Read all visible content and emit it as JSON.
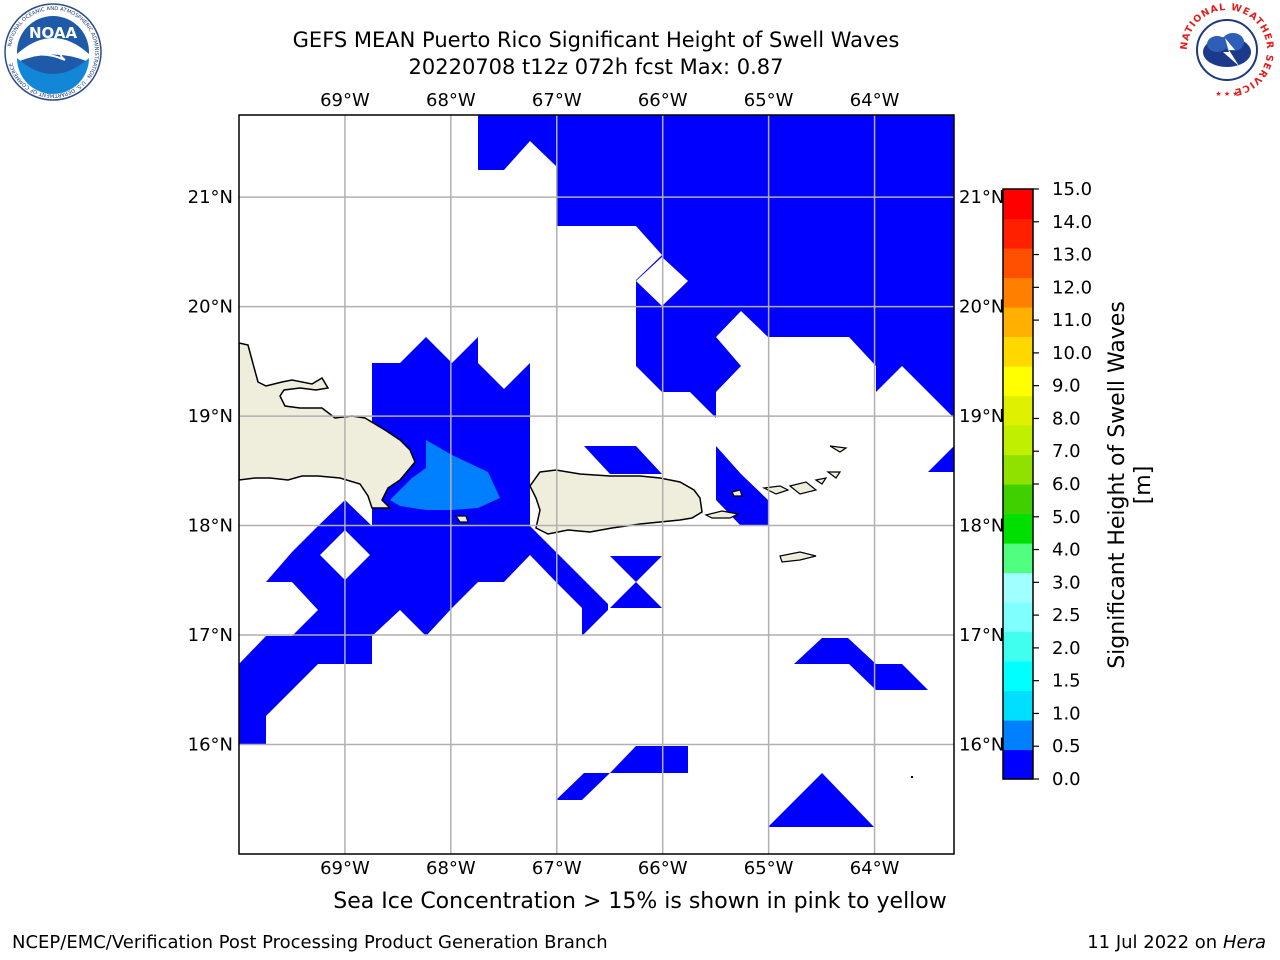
{
  "header": {
    "title_line1": "GEFS MEAN Puerto Rico Significant Height of Swell Waves",
    "title_line2": "20220708 t12z 072h fcst   Max: 0.87"
  },
  "logos": {
    "noaa_text": "NOAA",
    "noaa_ring_text": "NATIONAL OCEANIC AND ATMOSPHERIC ADMINISTRATION · U.S. DEPARTMENT OF COMMERCE",
    "nws_ring_text": "NATIONAL WEATHER SERVICE"
  },
  "map": {
    "lon_range": [
      -70.0,
      -63.25
    ],
    "lat_range": [
      15.0,
      21.75
    ],
    "lon_ticks": [
      "69°W",
      "68°W",
      "67°W",
      "66°W",
      "65°W",
      "64°W"
    ],
    "lat_ticks": [
      "21°N",
      "20°N",
      "19°N",
      "18°N",
      "17°N",
      "16°N"
    ],
    "grid": true,
    "land_color": "#efeddc",
    "ocean_color": "#ffffff",
    "swell_fill": "#0000ff",
    "swell_fill_high": "#0080ff"
  },
  "colorbar": {
    "label": "Significant Height of Swell Waves [m]",
    "ticks": [
      "0.0",
      "0.5",
      "1.0",
      "1.5",
      "2.0",
      "2.5",
      "3.0",
      "4.0",
      "5.0",
      "6.0",
      "7.0",
      "8.0",
      "9.0",
      "10.0",
      "11.0",
      "12.0",
      "13.0",
      "14.0",
      "15.0"
    ],
    "colors": [
      "#0000ff",
      "#0080ff",
      "#00dfff",
      "#00ffff",
      "#40ffef",
      "#80ffff",
      "#a0ffff",
      "#50ff80",
      "#00e000",
      "#40d000",
      "#90e000",
      "#c0f000",
      "#dff000",
      "#ffff00",
      "#ffd800",
      "#ffb000",
      "#ff8000",
      "#ff5000",
      "#ff2000",
      "#ff0000"
    ]
  },
  "caption": "Sea Ice Concentration > 15% is shown in pink to yellow",
  "footer": {
    "left": "NCEP/EMC/Verification Post Processing Product Generation Branch",
    "date": "11 Jul 2022 on ",
    "host": "Hera"
  }
}
